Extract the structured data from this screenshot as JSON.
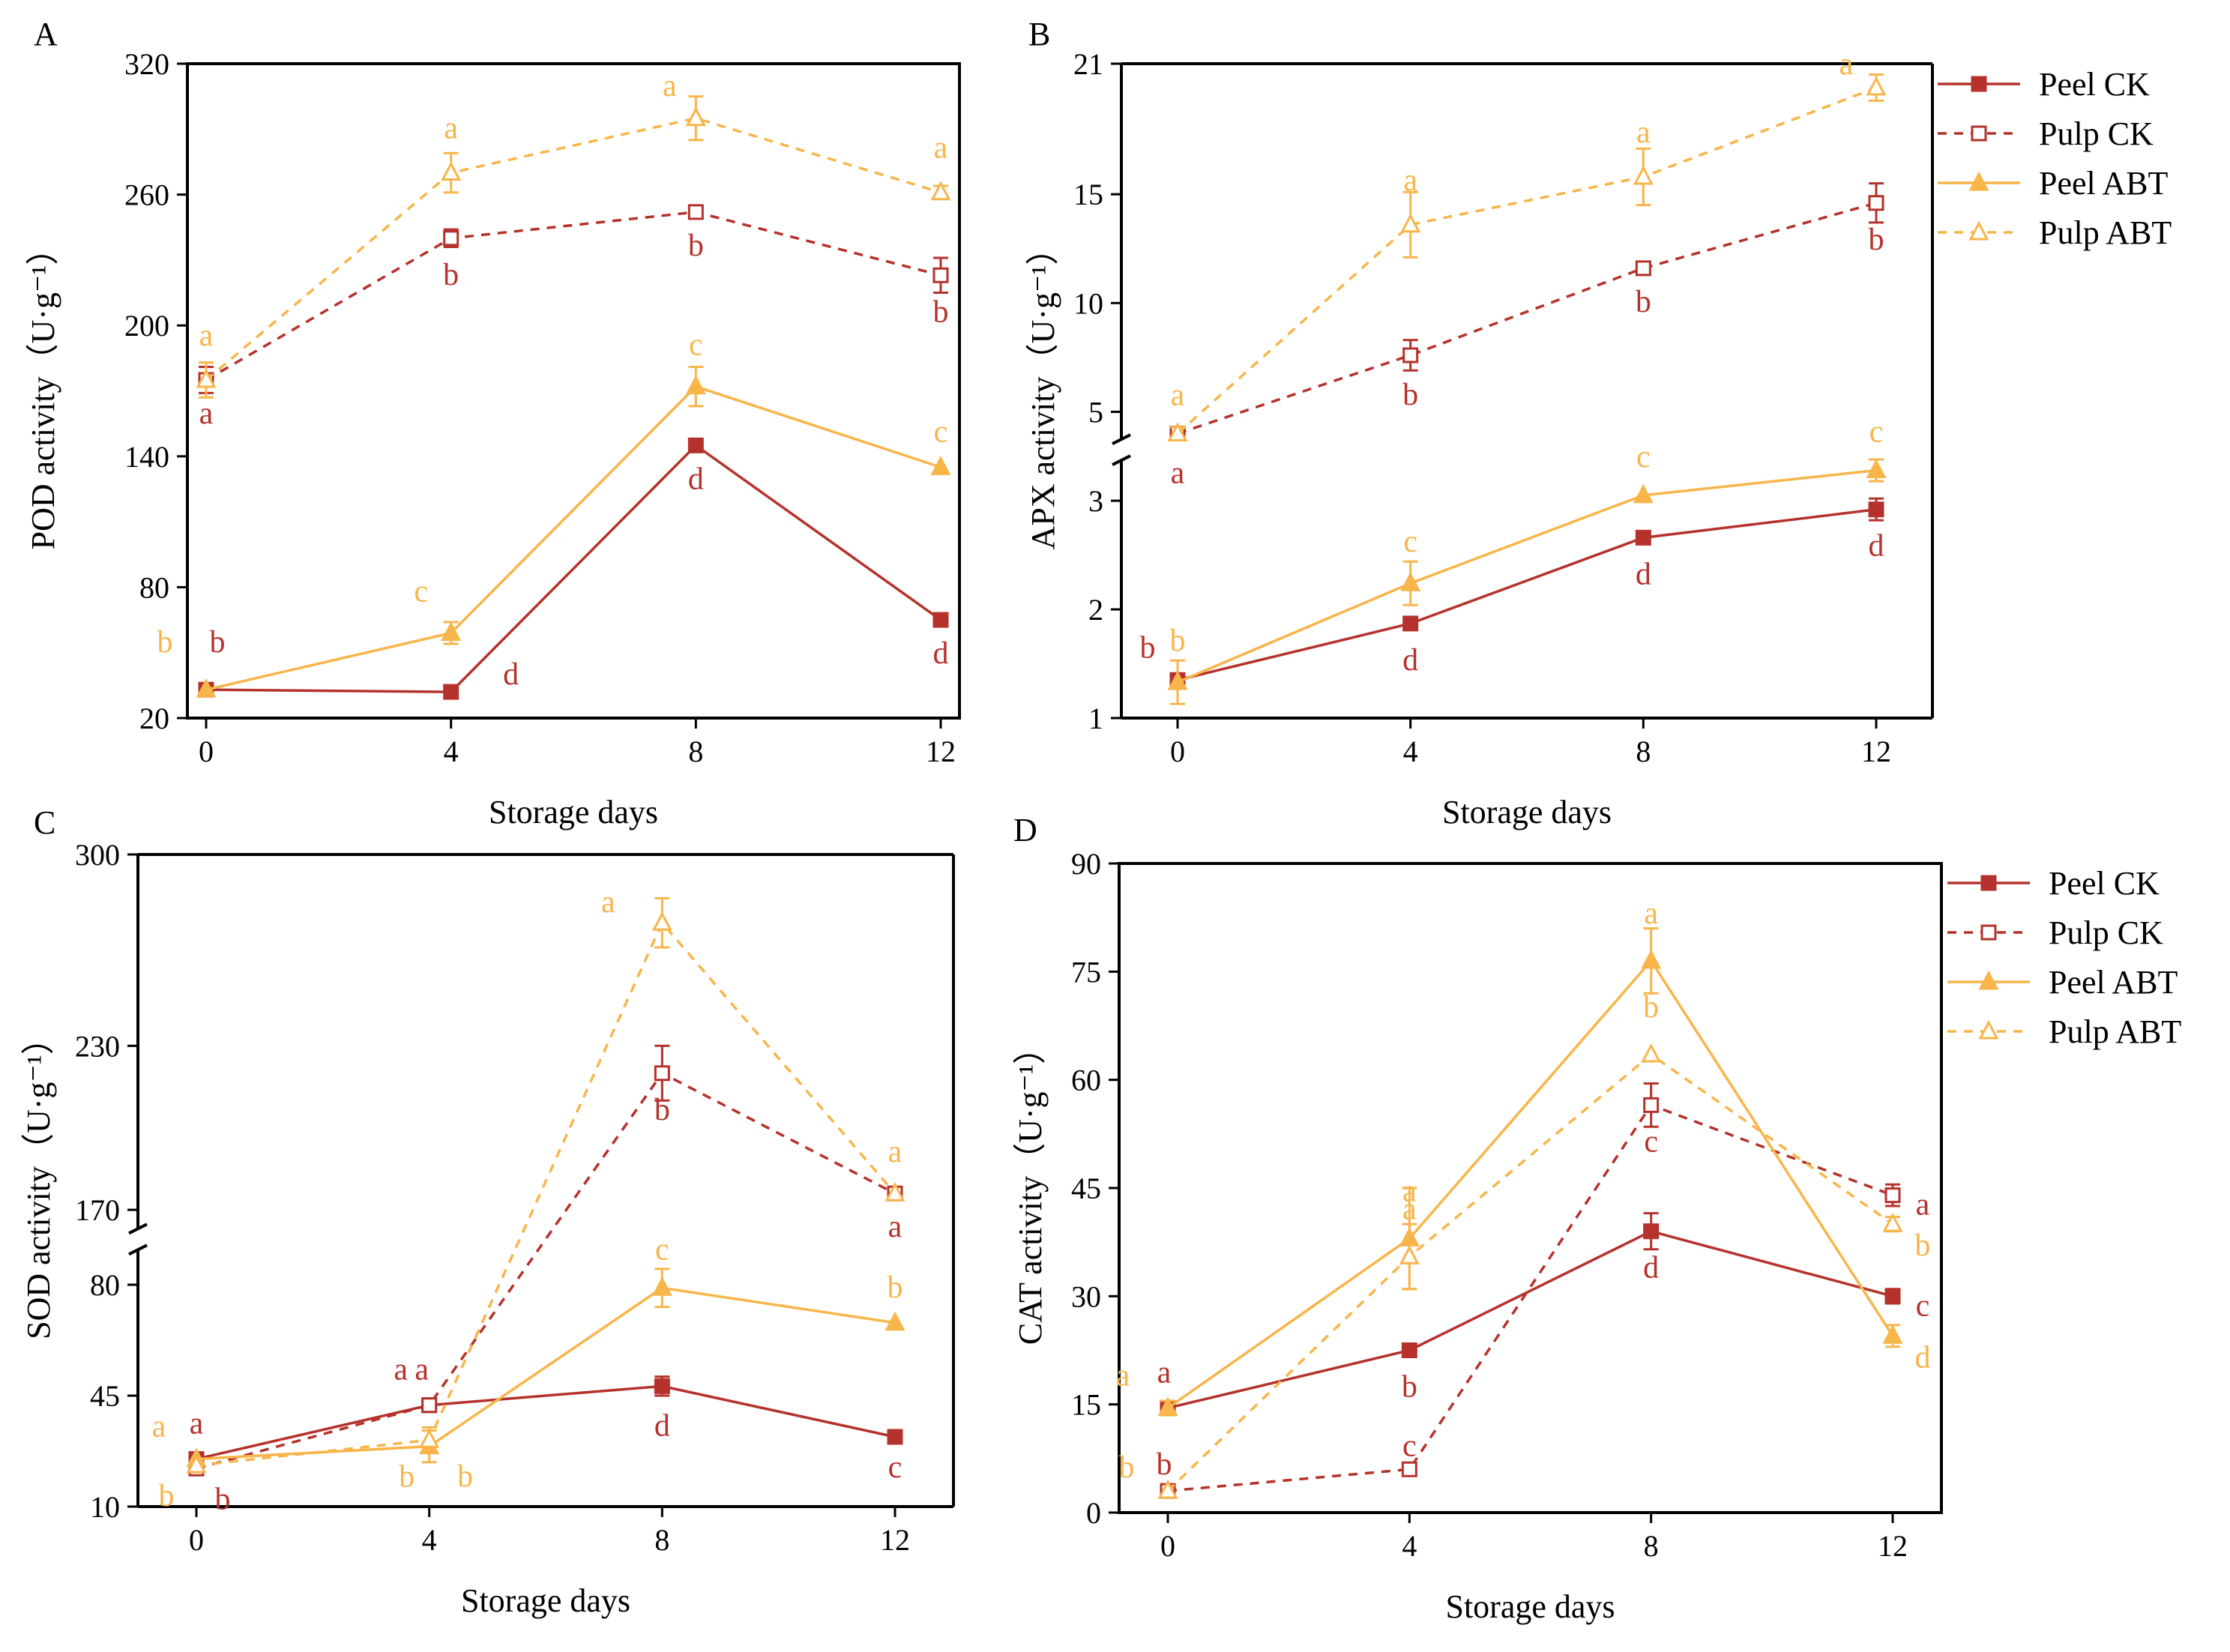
{
  "colors": {
    "ck": "#b5322c",
    "abt": "#f8b54a",
    "axis": "#000000"
  },
  "chart_data": [
    {
      "id": "A",
      "type": "line",
      "panel_label": "A",
      "xlabel": "Storage days",
      "ylabel": "POD activity（U·g⁻¹）",
      "ylim": [
        20,
        320
      ],
      "yticks": [
        20,
        80,
        140,
        200,
        260,
        320
      ],
      "x": [
        0,
        4,
        8,
        12
      ],
      "xticks": [
        0,
        4,
        8,
        12
      ],
      "series": [
        {
          "name": "Peel CK",
          "values": [
            33,
            32,
            145,
            65
          ],
          "err": [
            0,
            0,
            0,
            0
          ],
          "letters": [
            {
              "t": "b",
              "dx": 0.15,
              "dy": 22
            },
            {
              "t": "d",
              "dx": 0.8,
              "dy": 2
            },
            {
              "t": "d",
              "dx": 0,
              "dy": -20
            },
            {
              "t": "d",
              "dx": 0,
              "dy": -20
            }
          ]
        },
        {
          "name": "Pulp CK",
          "values": [
            175,
            240,
            252,
            223
          ],
          "err": [
            6,
            4,
            0,
            8
          ],
          "letters": [
            {
              "t": "a",
              "dx": 0,
              "dy": -20
            },
            {
              "t": "b",
              "dx": 0,
              "dy": -22
            },
            {
              "t": "b",
              "dx": 0,
              "dy": -20
            },
            {
              "t": "b",
              "dx": 0,
              "dy": -22
            }
          ]
        },
        {
          "name": "Peel ABT",
          "values": [
            33,
            59,
            172,
            135
          ],
          "err": [
            0,
            5,
            9,
            0
          ],
          "letters": [
            {
              "t": "b",
              "dx": -0.55,
              "dy": 22
            },
            {
              "t": "c",
              "dx": -0.4,
              "dy": 18
            },
            {
              "t": "c",
              "dx": 0,
              "dy": 18
            },
            {
              "t": "c",
              "dx": 0,
              "dy": 14
            }
          ]
        },
        {
          "name": "Pulp ABT",
          "values": [
            175,
            270,
            295,
            261
          ],
          "err": [
            8,
            9,
            10,
            3
          ],
          "letters": [
            {
              "t": "a",
              "dx": 0,
              "dy": 20
            },
            {
              "t": "a",
              "dx": 0,
              "dy": 20
            },
            {
              "t": "a",
              "dx": -0.35,
              "dy": 12
            },
            {
              "t": "a",
              "dx": 0,
              "dy": 20
            }
          ]
        }
      ]
    },
    {
      "id": "B",
      "type": "line",
      "panel_label": "B",
      "xlabel": "Storage days",
      "ylabel": "APX activity（U·g⁻¹）",
      "broken_axis": true,
      "lower_ylim": [
        1,
        3.4
      ],
      "lower_yticks": [
        1,
        2,
        3
      ],
      "upper_ylim": [
        3.6,
        21
      ],
      "upper_yticks": [
        5,
        10,
        15,
        21
      ],
      "x": [
        0,
        4,
        8,
        12
      ],
      "xticks": [
        0,
        4,
        8,
        12
      ],
      "series": [
        {
          "name": "Peel CK",
          "values": [
            1.35,
            1.87,
            2.66,
            2.92
          ],
          "err": [
            0.05,
            0.04,
            0,
            0.1
          ],
          "letters": [
            {
              "t": "b",
              "dx": -0.4,
              "dy": 12
            },
            {
              "t": "d",
              "dx": 0,
              "dy": -22
            },
            {
              "t": "d",
              "dx": 0,
              "dy": -22
            },
            {
              "t": "d",
              "dx": 0,
              "dy": -22
            }
          ]
        },
        {
          "name": "Pulp CK",
          "values": [
            4.0,
            7.6,
            11.6,
            14.6
          ],
          "err": [
            0.3,
            0.7,
            0.2,
            0.9
          ],
          "letters": [
            {
              "t": "a",
              "dx": 0,
              "dy": -24
            },
            {
              "t": "b",
              "dx": 0,
              "dy": -24
            },
            {
              "t": "b",
              "dx": 0,
              "dy": -20
            },
            {
              "t": "b",
              "dx": 0,
              "dy": -22
            }
          ]
        },
        {
          "name": "Peel ABT",
          "values": [
            1.33,
            2.24,
            3.05,
            3.28
          ],
          "err": [
            0.2,
            0.2,
            0,
            0.1
          ],
          "letters": [
            {
              "t": "b",
              "dx": 0,
              "dy": 18
            },
            {
              "t": "c",
              "dx": 0,
              "dy": 18
            },
            {
              "t": "c",
              "dx": 0,
              "dy": 16
            },
            {
              "t": "c",
              "dx": 0,
              "dy": 16
            }
          ]
        },
        {
          "name": "Pulp ABT",
          "values": [
            4.0,
            13.6,
            15.8,
            19.9
          ],
          "err": [
            0.3,
            1.5,
            1.3,
            0.6
          ],
          "letters": [
            {
              "t": "a",
              "dx": 0,
              "dy": 16
            },
            {
              "t": "a",
              "dx": 0,
              "dy": 20
            },
            {
              "t": "a",
              "dx": 0,
              "dy": 20
            },
            {
              "t": "a",
              "dx": -0.4,
              "dy": 6
            }
          ]
        }
      ],
      "legend": {
        "position": "right",
        "entries": [
          "Peel CK",
          "Pulp CK",
          "Peel ABT",
          "Pulp ABT"
        ]
      }
    },
    {
      "id": "C",
      "type": "line",
      "panel_label": "C",
      "xlabel": "Storage days",
      "ylabel": "SOD activity（U·g⁻¹）",
      "broken_axis": true,
      "lower_ylim": [
        10,
        92
      ],
      "lower_yticks": [
        10,
        45,
        80
      ],
      "upper_ylim": [
        162,
        300
      ],
      "upper_yticks": [
        170,
        230,
        300
      ],
      "x": [
        0,
        4,
        8,
        12
      ],
      "xticks": [
        0,
        4,
        8,
        12
      ],
      "series": [
        {
          "name": "Peel CK",
          "values": [
            25,
            42,
            48,
            32
          ],
          "err": [
            0,
            0,
            3,
            0
          ],
          "letters": [
            {
              "t": "a",
              "dx": 0,
              "dy": 14
            },
            {
              "t": "a",
              "dx": -0.1,
              "dy": 14
            },
            {
              "t": "d",
              "dx": 0,
              "dy": -24
            },
            {
              "t": "c",
              "dx": 0,
              "dy": -18
            }
          ]
        },
        {
          "name": "Pulp CK",
          "values": [
            22,
            42,
            220,
            176
          ],
          "err": [
            0,
            0,
            10,
            0
          ],
          "letters": [
            {
              "t": "b",
              "dx": 0.35,
              "dy": -18
            },
            {
              "t": "a",
              "dx": -0.38,
              "dy": 14
            },
            {
              "t": "b",
              "dx": 0,
              "dy": -22
            },
            {
              "t": "a",
              "dx": 0,
              "dy": -20
            }
          ]
        },
        {
          "name": "Peel ABT",
          "values": [
            25,
            29,
            79,
            68
          ],
          "err": [
            0,
            5,
            6,
            0
          ],
          "letters": [
            {
              "t": "a",
              "dx": -0.5,
              "dy": 12
            },
            {
              "t": "b",
              "dx": -0.3,
              "dy": -18
            },
            {
              "t": "c",
              "dx": 0,
              "dy": 16
            },
            {
              "t": "b",
              "dx": 0,
              "dy": 14
            }
          ]
        },
        {
          "name": "Pulp ABT",
          "values": [
            23,
            31,
            275,
            176
          ],
          "err": [
            0,
            4,
            9,
            0
          ],
          "letters": [
            {
              "t": "b",
              "dx": -0.4,
              "dy": -18
            },
            {
              "t": "b",
              "dx": 0.48,
              "dy": -22
            },
            {
              "t": "a",
              "dx": -0.72,
              "dy": 4
            },
            {
              "t": "a",
              "dx": 0,
              "dy": 18
            }
          ]
        }
      ]
    },
    {
      "id": "D",
      "type": "line",
      "panel_label": "D",
      "xlabel": "Storage days",
      "ylabel": "CAT activity（U·g⁻¹）",
      "ylim": [
        0,
        90
      ],
      "yticks": [
        0,
        15,
        30,
        45,
        60,
        75,
        90
      ],
      "x": [
        0,
        4,
        8,
        12
      ],
      "xticks": [
        0,
        4,
        8,
        12
      ],
      "series": [
        {
          "name": "Peel CK",
          "values": [
            14.5,
            22.5,
            39,
            30
          ],
          "err": [
            0,
            0,
            2.5,
            1
          ],
          "letters": [
            {
              "t": "a",
              "dx": -0.05,
              "dy": 14
            },
            {
              "t": "b",
              "dx": 0,
              "dy": -22
            },
            {
              "t": "d",
              "dx": 0,
              "dy": -22
            },
            {
              "t": "c",
              "dx": 0.4,
              "dy": -4
            }
          ]
        },
        {
          "name": "Pulp CK",
          "values": [
            3,
            6,
            56.5,
            44
          ],
          "err": [
            0,
            0,
            3,
            1.5
          ],
          "letters": [
            {
              "t": "b",
              "dx": -0.05,
              "dy": 8
            },
            {
              "t": "c",
              "dx": 0,
              "dy": 6
            },
            {
              "t": "c",
              "dx": 0,
              "dy": -22
            },
            {
              "t": "a",
              "dx": 0.4,
              "dy": -4
            }
          ]
        },
        {
          "name": "Peel ABT",
          "values": [
            14.5,
            38,
            76.5,
            24.5
          ],
          "err": [
            1,
            7,
            4.5,
            1.5
          ],
          "letters": [
            {
              "t": "a",
              "dx": -0.6,
              "dy": 12
            },
            {
              "t": "a",
              "dx": 0,
              "dy": 22
            },
            {
              "t": "a",
              "dx": 0,
              "dy": 22
            },
            {
              "t": "d",
              "dx": 0.4,
              "dy": -12
            }
          ]
        },
        {
          "name": "Pulp ABT",
          "values": [
            3,
            35.5,
            63.5,
            40
          ],
          "err": [
            0,
            4.5,
            0,
            1
          ],
          "letters": [
            {
              "t": "b",
              "dx": -0.55,
              "dy": 6
            },
            {
              "t": "a",
              "dx": 0,
              "dy": 22
            },
            {
              "t": "b",
              "dx": 0,
              "dy": 22
            },
            {
              "t": "b",
              "dx": 0.4,
              "dy": -12
            }
          ]
        }
      ],
      "legend": {
        "position": "right",
        "entries": [
          "Peel CK",
          "Pulp CK",
          "Peel ABT",
          "Pulp ABT"
        ]
      }
    }
  ]
}
